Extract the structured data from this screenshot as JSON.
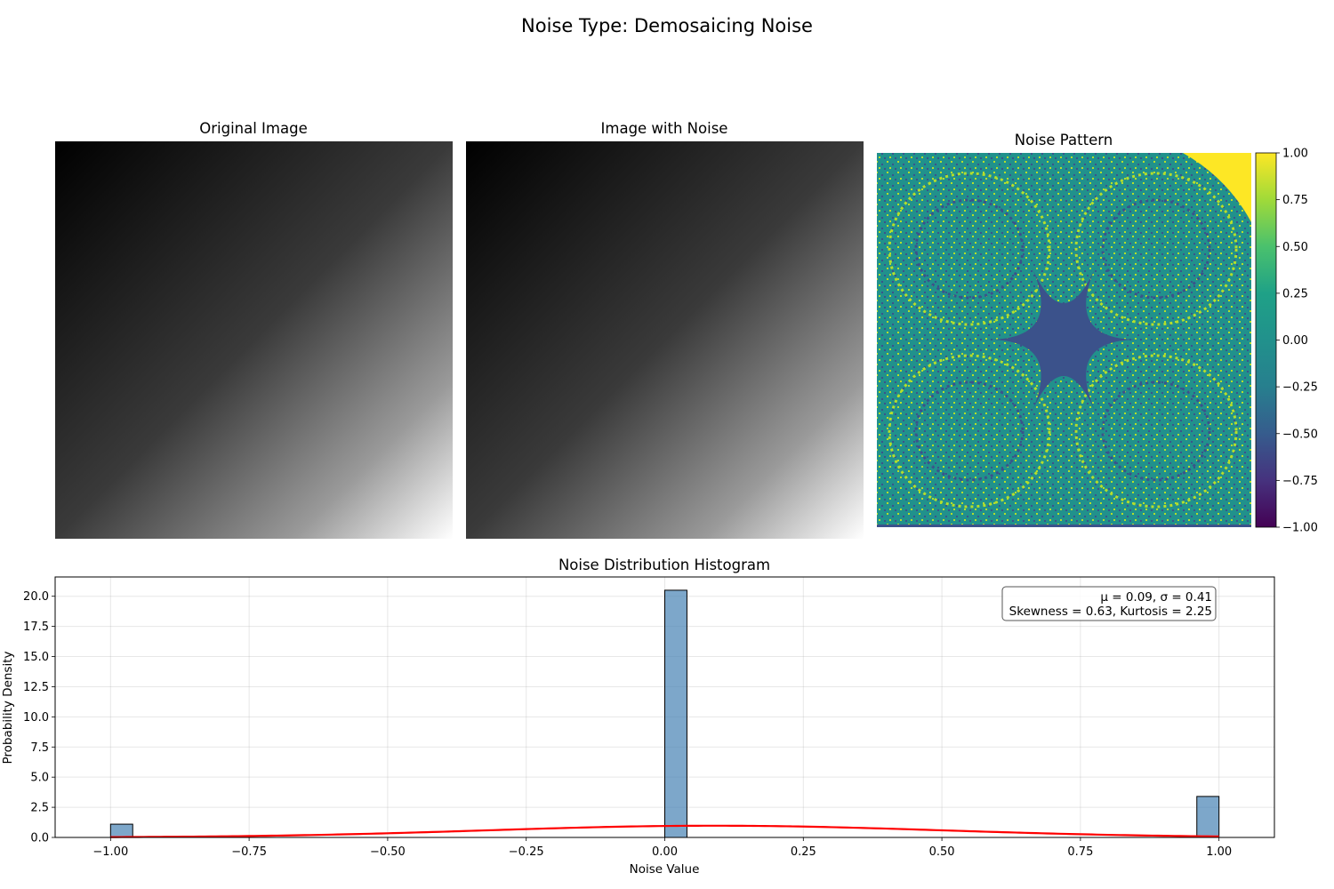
{
  "figure": {
    "title": "Noise Type: Demosaicing Noise"
  },
  "panels": {
    "original_title": "Original Image",
    "noisy_title": "Image with Noise",
    "pattern_title": "Noise Pattern"
  },
  "colorbar": {
    "colormap": "viridis",
    "range": [
      -1.0,
      1.0
    ],
    "ticks": [
      1.0,
      0.75,
      0.5,
      0.25,
      0.0,
      -0.25,
      -0.5,
      -0.75,
      -1.0
    ],
    "tick_labels": [
      "1.00",
      "0.75",
      "0.50",
      "0.25",
      "0.00",
      "−0.25",
      "−0.50",
      "−0.75",
      "−1.00"
    ]
  },
  "chart_data": {
    "type": "bar",
    "title": "Noise Distribution Histogram",
    "xlabel": "Noise Value",
    "ylabel": "Probability Density",
    "xlim": [
      -1.1,
      1.1
    ],
    "ylim": [
      0,
      21.6
    ],
    "grid": true,
    "bar_color": "#4682b4",
    "bar_edge_color": "#000000",
    "fit_color": "#ff0000",
    "bins": [
      {
        "x0": -1.0,
        "x1": -0.96,
        "density": 1.1
      },
      {
        "x0": 0.0,
        "x1": 0.04,
        "density": 20.5
      },
      {
        "x0": 0.96,
        "x1": 1.0,
        "density": 3.4
      }
    ],
    "normal_fit": {
      "mu": 0.09,
      "sigma": 0.41
    },
    "xticks": [
      -1.0,
      -0.75,
      -0.5,
      -0.25,
      0.0,
      0.25,
      0.5,
      0.75,
      1.0
    ],
    "xtick_labels": [
      "−1.00",
      "−0.75",
      "−0.50",
      "−0.25",
      "0.00",
      "0.25",
      "0.50",
      "0.75",
      "1.00"
    ],
    "yticks": [
      0.0,
      2.5,
      5.0,
      7.5,
      10.0,
      12.5,
      15.0,
      17.5,
      20.0
    ],
    "ytick_labels": [
      "0.0",
      "2.5",
      "5.0",
      "7.5",
      "10.0",
      "12.5",
      "15.0",
      "17.5",
      "20.0"
    ],
    "stats_line1": "μ = 0.09, σ = 0.41",
    "stats_line2": "Skewness = 0.63, Kurtosis = 2.25",
    "stats_legend_position": "top-right"
  }
}
